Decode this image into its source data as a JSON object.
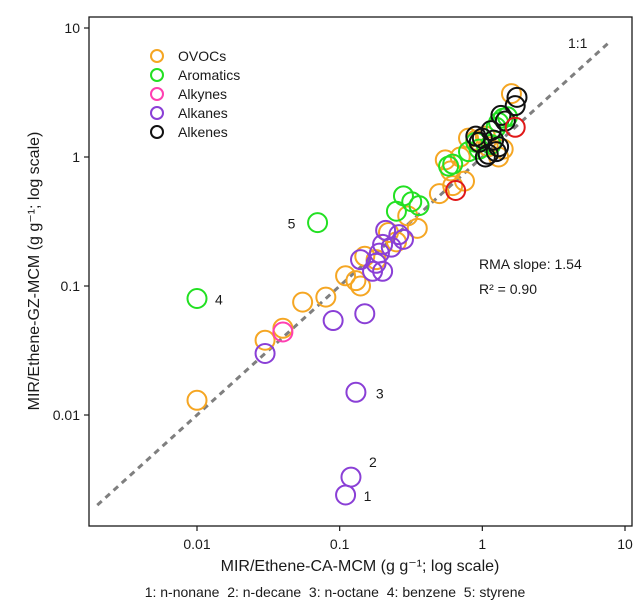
{
  "chart_data": {
    "type": "scatter",
    "scale": "log-log",
    "xlabel": "MIR/Ethene-CA-MCM (g g⁻¹; log scale)",
    "ylabel": "MIR/Ethene-GZ-MCM (g g⁻¹; log scale)",
    "xlim": [
      0.002,
      10
    ],
    "ylim": [
      0.0015,
      10
    ],
    "x_ticks": [
      "0.01",
      "0.1",
      "1",
      "10"
    ],
    "y_ticks": [
      "0.01",
      "0.1",
      "1",
      "10"
    ],
    "grid": false,
    "legend_position": "top-left",
    "one_to_one_label": "1:1",
    "stats": {
      "slope_text": "RMA slope: 1.54",
      "r2_text": "R² = 0.90"
    },
    "footnote": "1: n-nonane  2: n-decane  3: n-octane  4: benzene  5: styrene",
    "series": [
      {
        "name": "OVOCs",
        "color": "#f5a623",
        "points": [
          [
            0.01,
            0.013
          ],
          [
            0.03,
            0.038
          ],
          [
            0.04,
            0.047
          ],
          [
            0.055,
            0.075
          ],
          [
            0.08,
            0.082
          ],
          [
            0.11,
            0.12
          ],
          [
            0.13,
            0.11
          ],
          [
            0.14,
            0.1
          ],
          [
            0.15,
            0.17
          ],
          [
            0.18,
            0.16
          ],
          [
            0.22,
            0.26
          ],
          [
            0.25,
            0.22
          ],
          [
            0.3,
            0.35
          ],
          [
            0.35,
            0.28
          ],
          [
            0.5,
            0.52
          ],
          [
            0.55,
            0.95
          ],
          [
            0.6,
            0.78
          ],
          [
            0.62,
            0.6
          ],
          [
            0.7,
            1.0
          ],
          [
            0.75,
            0.65
          ],
          [
            0.8,
            1.4
          ],
          [
            0.9,
            1.35
          ],
          [
            1.05,
            1.45
          ],
          [
            1.1,
            1.2
          ],
          [
            1.3,
            1.0
          ],
          [
            1.4,
            1.15
          ],
          [
            1.6,
            3.1
          ]
        ]
      },
      {
        "name": "Aromatics",
        "color": "#22e022",
        "points": [
          [
            0.01,
            0.08
          ],
          [
            0.07,
            0.31
          ],
          [
            0.25,
            0.38
          ],
          [
            0.28,
            0.5
          ],
          [
            0.32,
            0.45
          ],
          [
            0.36,
            0.42
          ],
          [
            0.58,
            0.85
          ],
          [
            0.62,
            0.88
          ],
          [
            0.8,
            1.1
          ],
          [
            0.9,
            1.3
          ],
          [
            0.95,
            1.15
          ],
          [
            1.15,
            1.25
          ],
          [
            1.25,
            1.7
          ],
          [
            1.3,
            1.85
          ],
          [
            1.4,
            2.0
          ],
          [
            1.5,
            2.05
          ]
        ]
      },
      {
        "name": "Alkynes",
        "color": "#ff3fb1",
        "points": [
          [
            0.04,
            0.044
          ]
        ]
      },
      {
        "name": "Alkanes",
        "color": "#8a3fd6",
        "points": [
          [
            0.11,
            0.0024
          ],
          [
            0.12,
            0.0033
          ],
          [
            0.13,
            0.015
          ],
          [
            0.03,
            0.03
          ],
          [
            0.09,
            0.054
          ],
          [
            0.15,
            0.061
          ],
          [
            0.14,
            0.16
          ],
          [
            0.17,
            0.13
          ],
          [
            0.18,
            0.15
          ],
          [
            0.19,
            0.18
          ],
          [
            0.2,
            0.13
          ],
          [
            0.2,
            0.21
          ],
          [
            0.21,
            0.27
          ],
          [
            0.23,
            0.2
          ],
          [
            0.26,
            0.25
          ],
          [
            0.28,
            0.23
          ]
        ]
      },
      {
        "name": "Alkenes",
        "color": "#111111",
        "points": [
          [
            0.9,
            1.45
          ],
          [
            0.95,
            1.3
          ],
          [
            1.0,
            1.4
          ],
          [
            1.05,
            1.0
          ],
          [
            1.1,
            1.05
          ],
          [
            1.15,
            1.6
          ],
          [
            1.2,
            1.35
          ],
          [
            1.25,
            1.1
          ],
          [
            1.3,
            1.2
          ],
          [
            1.35,
            2.1
          ],
          [
            1.45,
            1.9
          ],
          [
            1.7,
            2.5
          ],
          [
            1.75,
            2.9
          ]
        ]
      },
      {
        "color": "#e01818",
        "points": [
          [
            0.65,
            0.55
          ],
          [
            1.7,
            1.7
          ]
        ]
      }
    ],
    "annotations": [
      {
        "label": "1",
        "x": 0.11,
        "y": 0.0024
      },
      {
        "label": "2",
        "x": 0.12,
        "y": 0.0033
      },
      {
        "label": "3",
        "x": 0.13,
        "y": 0.015
      },
      {
        "label": "4",
        "x": 0.01,
        "y": 0.08
      },
      {
        "label": "5",
        "x": 0.07,
        "y": 0.31
      }
    ]
  }
}
